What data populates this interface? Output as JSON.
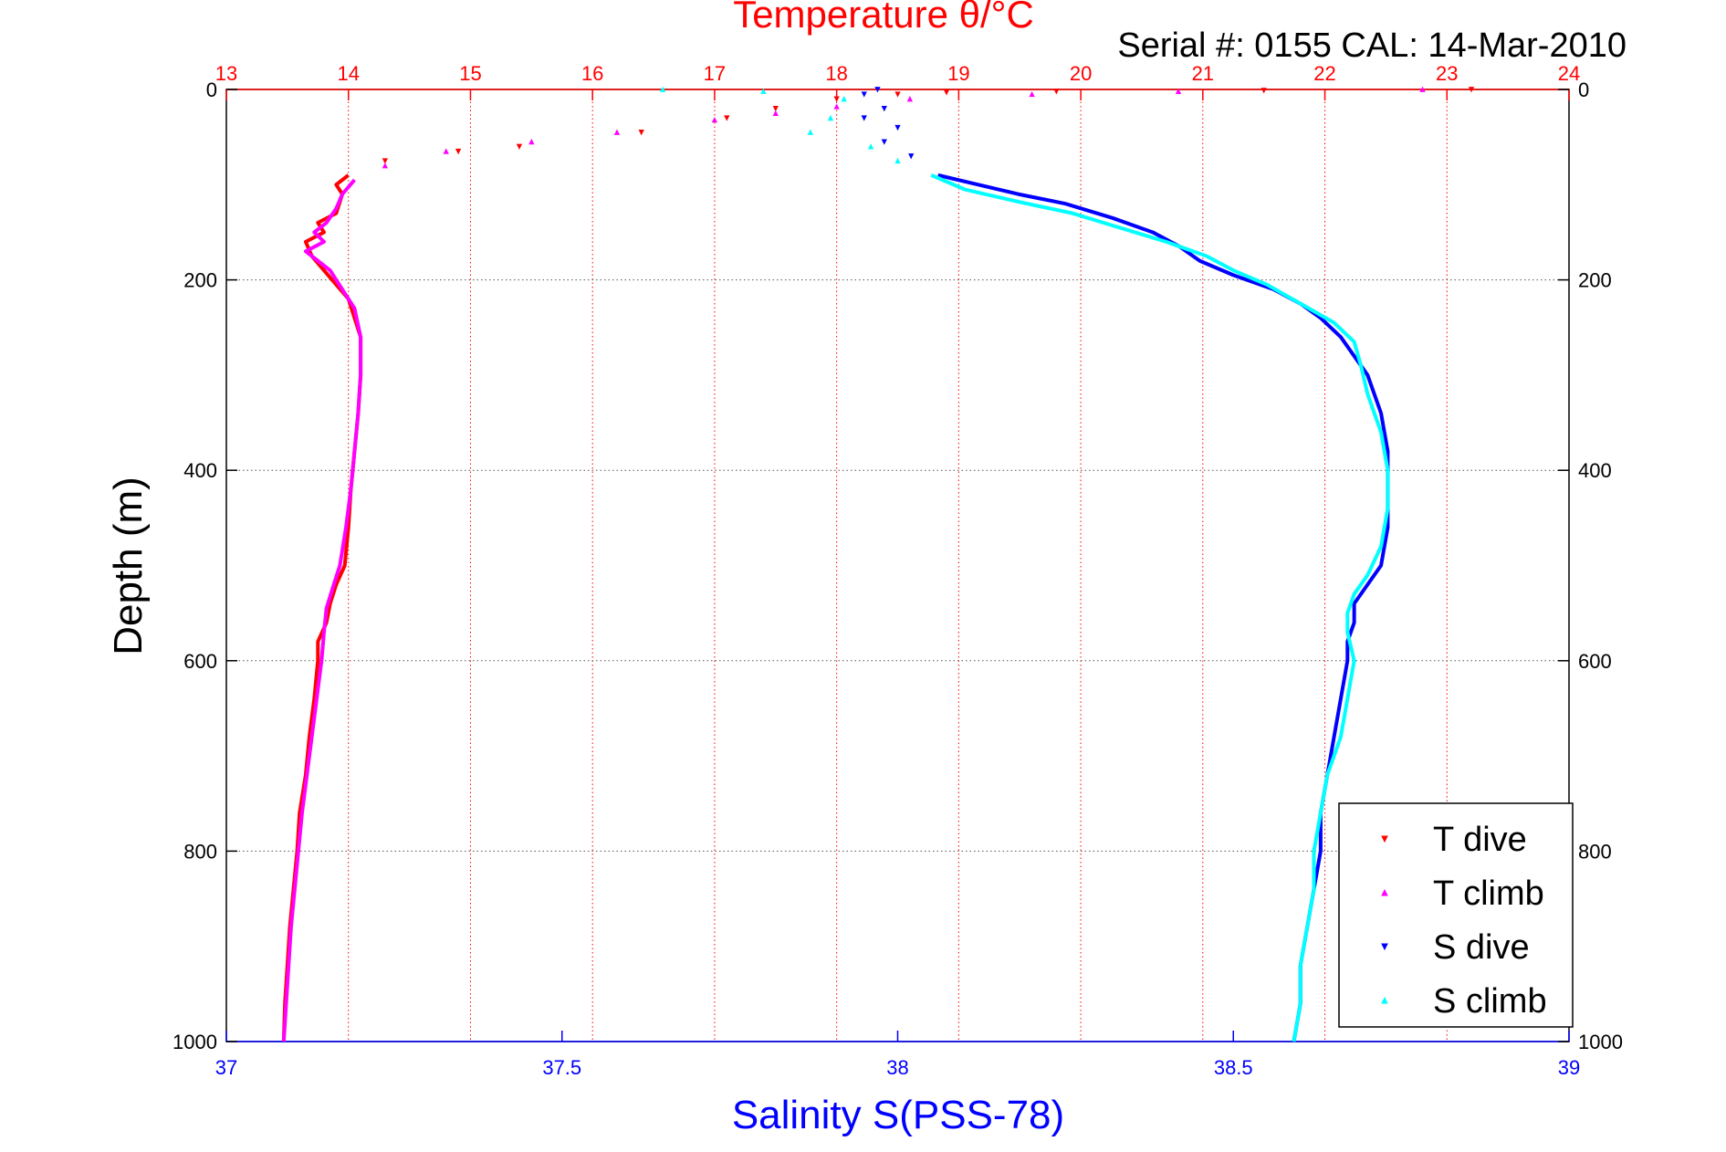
{
  "chart_data": {
    "type": "scatter",
    "title": "Temperature θ/°C",
    "subtitle": "Serial #: 0155  CAL: 14-Mar-2010",
    "xlabel": "Salinity S(PSS-78)",
    "ylabel": "Depth (m)",
    "x_top": {
      "label": "Temperature θ/°C",
      "lim": [
        13,
        24
      ],
      "ticks": [
        "13",
        "14",
        "15",
        "16",
        "17",
        "18",
        "19",
        "20",
        "21",
        "22",
        "23",
        "24"
      ],
      "color": "#ff0000"
    },
    "x_bottom": {
      "label": "Salinity S(PSS-78)",
      "lim": [
        37,
        39
      ],
      "ticks": [
        "37",
        "37.5",
        "38",
        "38.5",
        "39"
      ],
      "color": "#0000ff"
    },
    "y": {
      "lim": [
        0,
        1000
      ],
      "reversed": true,
      "ticks": [
        "0",
        "200",
        "400",
        "600",
        "800",
        "1000"
      ]
    },
    "grid": true,
    "legend_position": "bottom-right",
    "series": [
      {
        "name": "T dive",
        "axis": "temperature",
        "color": "#ff0000",
        "marker": "triangle-down",
        "points": [
          [
            23.2,
            0
          ],
          [
            21.5,
            1
          ],
          [
            19.8,
            2
          ],
          [
            18.9,
            3
          ],
          [
            18.5,
            5
          ],
          [
            18.0,
            10
          ],
          [
            17.5,
            20
          ],
          [
            17.1,
            30
          ],
          [
            16.4,
            45
          ],
          [
            15.4,
            60
          ],
          [
            14.9,
            65
          ],
          [
            14.3,
            75
          ],
          [
            14.0,
            90
          ],
          [
            13.9,
            100
          ],
          [
            13.95,
            110
          ],
          [
            13.9,
            130
          ],
          [
            13.75,
            140
          ],
          [
            13.8,
            150
          ],
          [
            13.65,
            160
          ],
          [
            13.7,
            175
          ],
          [
            13.8,
            190
          ],
          [
            13.9,
            205
          ],
          [
            14.0,
            220
          ],
          [
            14.05,
            240
          ],
          [
            14.1,
            260
          ],
          [
            14.1,
            280
          ],
          [
            14.1,
            300
          ],
          [
            14.08,
            340
          ],
          [
            14.05,
            380
          ],
          [
            14.02,
            420
          ],
          [
            14.0,
            460
          ],
          [
            13.97,
            500
          ],
          [
            13.9,
            520
          ],
          [
            13.85,
            540
          ],
          [
            13.82,
            560
          ],
          [
            13.75,
            580
          ],
          [
            13.75,
            600
          ],
          [
            13.72,
            640
          ],
          [
            13.68,
            680
          ],
          [
            13.65,
            720
          ],
          [
            13.6,
            760
          ],
          [
            13.58,
            800
          ],
          [
            13.55,
            840
          ],
          [
            13.52,
            880
          ],
          [
            13.5,
            920
          ],
          [
            13.48,
            960
          ],
          [
            13.47,
            1000
          ]
        ]
      },
      {
        "name": "T climb",
        "axis": "temperature",
        "color": "#ff00ff",
        "marker": "triangle-up",
        "points": [
          [
            22.8,
            0
          ],
          [
            20.8,
            2
          ],
          [
            19.6,
            5
          ],
          [
            18.6,
            10
          ],
          [
            18.0,
            18
          ],
          [
            17.5,
            25
          ],
          [
            17.0,
            32
          ],
          [
            16.2,
            45
          ],
          [
            15.5,
            55
          ],
          [
            14.8,
            65
          ],
          [
            14.3,
            80
          ],
          [
            14.05,
            95
          ],
          [
            13.95,
            110
          ],
          [
            13.9,
            125
          ],
          [
            13.82,
            140
          ],
          [
            13.72,
            150
          ],
          [
            13.8,
            160
          ],
          [
            13.65,
            170
          ],
          [
            13.75,
            180
          ],
          [
            13.85,
            190
          ],
          [
            13.95,
            210
          ],
          [
            14.05,
            230
          ],
          [
            14.1,
            260
          ],
          [
            14.1,
            300
          ],
          [
            14.08,
            340
          ],
          [
            14.05,
            380
          ],
          [
            14.02,
            420
          ],
          [
            13.98,
            460
          ],
          [
            13.93,
            500
          ],
          [
            13.88,
            520
          ],
          [
            13.82,
            545
          ],
          [
            13.8,
            570
          ],
          [
            13.78,
            600
          ],
          [
            13.74,
            640
          ],
          [
            13.7,
            680
          ],
          [
            13.66,
            720
          ],
          [
            13.62,
            760
          ],
          [
            13.59,
            800
          ],
          [
            13.56,
            840
          ],
          [
            13.53,
            880
          ],
          [
            13.51,
            920
          ],
          [
            13.49,
            960
          ],
          [
            13.47,
            1000
          ]
        ]
      },
      {
        "name": "S dive",
        "axis": "salinity",
        "color": "#0000ff",
        "marker": "triangle-down",
        "points": [
          [
            37.97,
            0
          ],
          [
            37.95,
            5
          ],
          [
            37.98,
            20
          ],
          [
            37.95,
            30
          ],
          [
            38.0,
            40
          ],
          [
            37.98,
            55
          ],
          [
            38.02,
            70
          ],
          [
            38.06,
            90
          ],
          [
            38.12,
            100
          ],
          [
            38.18,
            110
          ],
          [
            38.25,
            120
          ],
          [
            38.32,
            135
          ],
          [
            38.38,
            150
          ],
          [
            38.42,
            165
          ],
          [
            38.45,
            180
          ],
          [
            38.5,
            195
          ],
          [
            38.56,
            210
          ],
          [
            38.6,
            225
          ],
          [
            38.63,
            240
          ],
          [
            38.66,
            260
          ],
          [
            38.68,
            280
          ],
          [
            38.7,
            300
          ],
          [
            38.72,
            340
          ],
          [
            38.73,
            380
          ],
          [
            38.73,
            420
          ],
          [
            38.73,
            460
          ],
          [
            38.72,
            500
          ],
          [
            38.7,
            520
          ],
          [
            38.68,
            540
          ],
          [
            38.68,
            560
          ],
          [
            38.67,
            580
          ],
          [
            38.67,
            600
          ],
          [
            38.66,
            640
          ],
          [
            38.65,
            680
          ],
          [
            38.64,
            720
          ],
          [
            38.63,
            760
          ],
          [
            38.63,
            800
          ],
          [
            38.62,
            840
          ],
          [
            38.61,
            880
          ],
          [
            38.6,
            920
          ],
          [
            38.6,
            960
          ],
          [
            38.59,
            1000
          ]
        ]
      },
      {
        "name": "S climb",
        "axis": "salinity",
        "color": "#00ffff",
        "marker": "triangle-up",
        "points": [
          [
            37.65,
            0
          ],
          [
            37.8,
            2
          ],
          [
            37.92,
            10
          ],
          [
            37.9,
            30
          ],
          [
            37.87,
            45
          ],
          [
            37.96,
            60
          ],
          [
            38.0,
            75
          ],
          [
            38.05,
            90
          ],
          [
            38.1,
            105
          ],
          [
            38.18,
            118
          ],
          [
            38.26,
            130
          ],
          [
            38.33,
            145
          ],
          [
            38.4,
            160
          ],
          [
            38.46,
            175
          ],
          [
            38.5,
            190
          ],
          [
            38.55,
            205
          ],
          [
            38.6,
            225
          ],
          [
            38.65,
            245
          ],
          [
            38.68,
            265
          ],
          [
            38.69,
            290
          ],
          [
            38.7,
            320
          ],
          [
            38.72,
            360
          ],
          [
            38.73,
            400
          ],
          [
            38.73,
            440
          ],
          [
            38.72,
            480
          ],
          [
            38.7,
            510
          ],
          [
            38.68,
            530
          ],
          [
            38.67,
            550
          ],
          [
            38.67,
            570
          ],
          [
            38.68,
            600
          ],
          [
            38.67,
            640
          ],
          [
            38.66,
            680
          ],
          [
            38.64,
            720
          ],
          [
            38.63,
            760
          ],
          [
            38.62,
            800
          ],
          [
            38.62,
            840
          ],
          [
            38.61,
            880
          ],
          [
            38.6,
            920
          ],
          [
            38.6,
            960
          ],
          [
            38.59,
            1000
          ]
        ]
      }
    ]
  }
}
